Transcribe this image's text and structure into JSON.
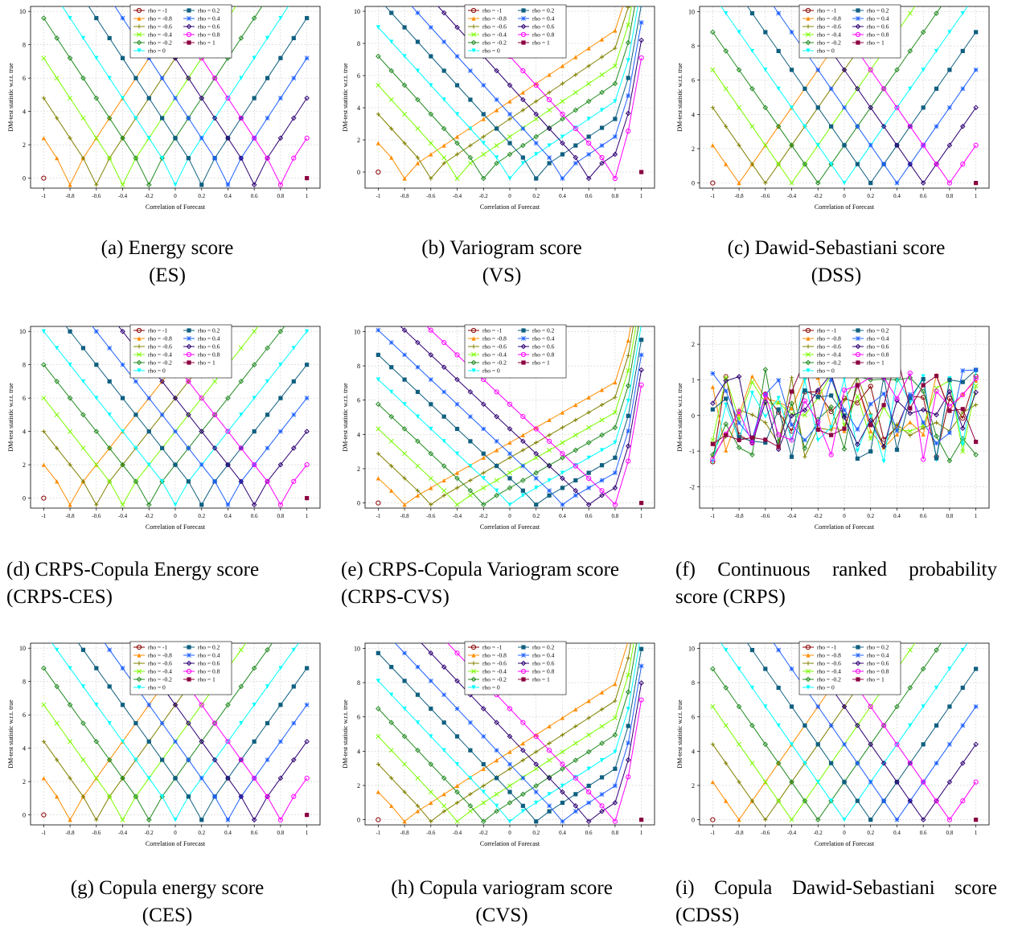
{
  "colors": {
    "rho = -1": "#8b0000",
    "rho = -0.8": "#ff8c00",
    "rho = -0.6": "#808000",
    "rho = -0.4": "#7cfc00",
    "rho = -0.2": "#228b22",
    "rho = 0": "#00ffff",
    "rho = 0.2": "#106080",
    "rho = 0.4": "#1f60ff",
    "rho = 0.6": "#2e0073",
    "rho = 0.8": "#ff00ff",
    "rho = 1": "#8b0040"
  },
  "legend_left": [
    "rho = -1",
    "rho = -0.8",
    "rho = -0.6",
    "rho = -0.4",
    "rho = -0.2",
    "rho = 0"
  ],
  "legend_right": [
    "rho = 0.2",
    "rho = 0.4",
    "rho = 0.6",
    "rho = 0.8",
    "rho = 1"
  ],
  "chart_data": [
    {
      "id": "a",
      "type": "line",
      "xlabel": "Correlation of Forecast",
      "ylabel": "DM-test statistic w.r.t. true",
      "ylim": [
        -0.6,
        10.3
      ],
      "yticks": [
        0,
        2,
        4,
        6,
        8,
        10
      ],
      "yticklabels": [
        "0",
        "2",
        "4",
        "6",
        "8",
        "10"
      ],
      "pattern": "v",
      "k": 12,
      "ylow": -0.4,
      "caption": [
        "(a) Energy score",
        "(ES)"
      ],
      "caption_align": "center"
    },
    {
      "id": "b",
      "type": "line",
      "xlabel": "Correlation of Forecast",
      "ylabel": "DM-test statistic w.r.t. true",
      "ylim": [
        -1,
        10.3
      ],
      "yticks": [
        0,
        2,
        4,
        6,
        8,
        10
      ],
      "yticklabels": [
        "0",
        "2",
        "4",
        "6",
        "8",
        "10"
      ],
      "pattern": "vs",
      "k": 10,
      "ylow": -0.4,
      "caption": [
        "(b) Variogram score",
        "(VS)"
      ],
      "caption_align": "center"
    },
    {
      "id": "c",
      "type": "line",
      "xlabel": "Correlation of Forecast",
      "ylabel": "DM-test statistic w.r.t. true",
      "ylim": [
        -0.3,
        10.3
      ],
      "yticks": [
        0,
        2,
        4,
        6,
        8,
        10
      ],
      "yticklabels": [
        "0",
        "2",
        "4",
        "6",
        "8",
        "10"
      ],
      "pattern": "v",
      "k": 11,
      "ylow": 0,
      "caption": [
        "(c) Dawid-Sebastiani score",
        "(DSS)"
      ],
      "caption_align": "center"
    },
    {
      "id": "d",
      "type": "line",
      "xlabel": "Correlation of Forecast",
      "ylabel": "DM-test statistic w.r.t. true",
      "ylim": [
        -0.6,
        10.3
      ],
      "yticks": [
        0,
        2,
        4,
        6,
        8,
        10
      ],
      "yticklabels": [
        "0",
        "2",
        "4",
        "6",
        "8",
        "10"
      ],
      "pattern": "v",
      "k": 10,
      "ylow": -0.4,
      "caption": [
        "(d) CRPS-Copula Energy score",
        "(CRPS-CES)"
      ],
      "caption_align": "left"
    },
    {
      "id": "e",
      "type": "line",
      "xlabel": "Correlation of Forecast",
      "ylabel": "DM-test statistic w.r.t. true",
      "ylim": [
        -0.3,
        10.3
      ],
      "yticks": [
        0,
        2,
        4,
        6,
        8,
        10
      ],
      "yticklabels": [
        "0",
        "2",
        "4",
        "6",
        "8",
        "10"
      ],
      "pattern": "vs",
      "k": 8,
      "ylow": -0.1,
      "caption": [
        "(e) CRPS-Copula Variogram score",
        "(CRPS-CVS)"
      ],
      "caption_align": "left"
    },
    {
      "id": "f",
      "type": "line",
      "xlabel": "Correlation of Forecast",
      "ylabel": "DM-test statistic w.r.t. true",
      "ylim": [
        -2.6,
        2.5
      ],
      "yticks": [
        -2,
        -1,
        0,
        1,
        2
      ],
      "yticklabels": [
        "-2",
        "-1",
        "0",
        "1",
        "2"
      ],
      "pattern": "noise",
      "k": 0,
      "ylow": 0,
      "caption": [
        "(f) Continuous ranked probability",
        "score (CRPS)"
      ],
      "caption_align": "justify"
    },
    {
      "id": "g",
      "type": "line",
      "xlabel": "Correlation of Forecast",
      "ylabel": "DM-test statistic w.r.t. true",
      "ylim": [
        -0.6,
        10.3
      ],
      "yticks": [
        0,
        2,
        4,
        6,
        8,
        10
      ],
      "yticklabels": [
        "0",
        "2",
        "4",
        "6",
        "8",
        "10"
      ],
      "pattern": "v",
      "k": 11,
      "ylow": -0.3,
      "caption": [
        "(g) Copula energy score",
        "(CES)"
      ],
      "caption_align": "center"
    },
    {
      "id": "h",
      "type": "line",
      "xlabel": "Correlation of Forecast",
      "ylabel": "DM-test statistic w.r.t. true",
      "ylim": [
        -0.3,
        10.3
      ],
      "yticks": [
        0,
        2,
        4,
        6,
        8,
        10
      ],
      "yticklabels": [
        "0",
        "2",
        "4",
        "6",
        "8",
        "10"
      ],
      "pattern": "vs",
      "k": 9,
      "ylow": -0.1,
      "caption": [
        "(h) Copula variogram score",
        "(CVS)"
      ],
      "caption_align": "center"
    },
    {
      "id": "i",
      "type": "line",
      "xlabel": "Correlation of Forecast",
      "ylabel": "DM-test statistic w.r.t. true",
      "ylim": [
        -0.3,
        10.3
      ],
      "yticks": [
        0,
        2,
        4,
        6,
        8,
        10
      ],
      "yticklabels": [
        "0",
        "2",
        "4",
        "6",
        "8",
        "10"
      ],
      "pattern": "v",
      "k": 11,
      "ylow": 0,
      "caption": [
        "(i) Copula Dawid-Sebastiani score",
        "(CDSS)"
      ],
      "caption_align": "justify"
    }
  ],
  "x": [
    -1,
    -0.9,
    -0.8,
    -0.7,
    -0.6,
    -0.5,
    -0.4,
    -0.3,
    -0.2,
    -0.1,
    0,
    0.1,
    0.2,
    0.3,
    0.4,
    0.5,
    0.6,
    0.7,
    0.8,
    0.9,
    1
  ],
  "xticks": [
    -1,
    -0.8,
    -0.6,
    -0.4,
    -0.2,
    0,
    0.2,
    0.4,
    0.6,
    0.8,
    1
  ],
  "xticklabels": [
    "-1",
    "-0.8",
    "-0.6",
    "-0.4",
    "-0.2",
    "0",
    "0.2",
    "0.4",
    "0.6",
    "0.8",
    "1"
  ]
}
